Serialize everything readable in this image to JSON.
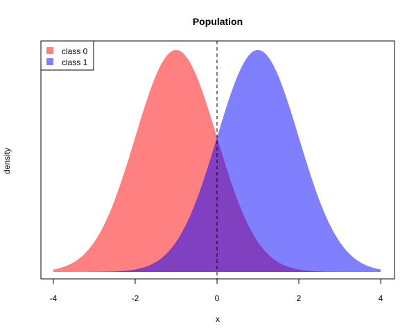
{
  "chart_data": {
    "type": "area",
    "title": "Population",
    "xlabel": "x",
    "ylabel": "density",
    "xlim": [
      -4.0,
      4.0
    ],
    "ylim": [
      0,
      0.4
    ],
    "x_ticks": [
      "-4",
      "-2",
      "0",
      "2",
      "4"
    ],
    "y_ticks_shown": false,
    "grid": false,
    "legend_position": "top-left",
    "reference_line": {
      "x": 0,
      "style": "dashed"
    },
    "series": [
      {
        "name": "class 0",
        "distribution": "normal",
        "mean": -1,
        "sd": 1,
        "color": "#ff8080"
      },
      {
        "name": "class 1",
        "distribution": "normal",
        "mean": 1,
        "sd": 1,
        "color": "#8080ff"
      }
    ],
    "overlap_color": "#8040c0",
    "x_sample_range": [
      -4,
      4
    ]
  }
}
